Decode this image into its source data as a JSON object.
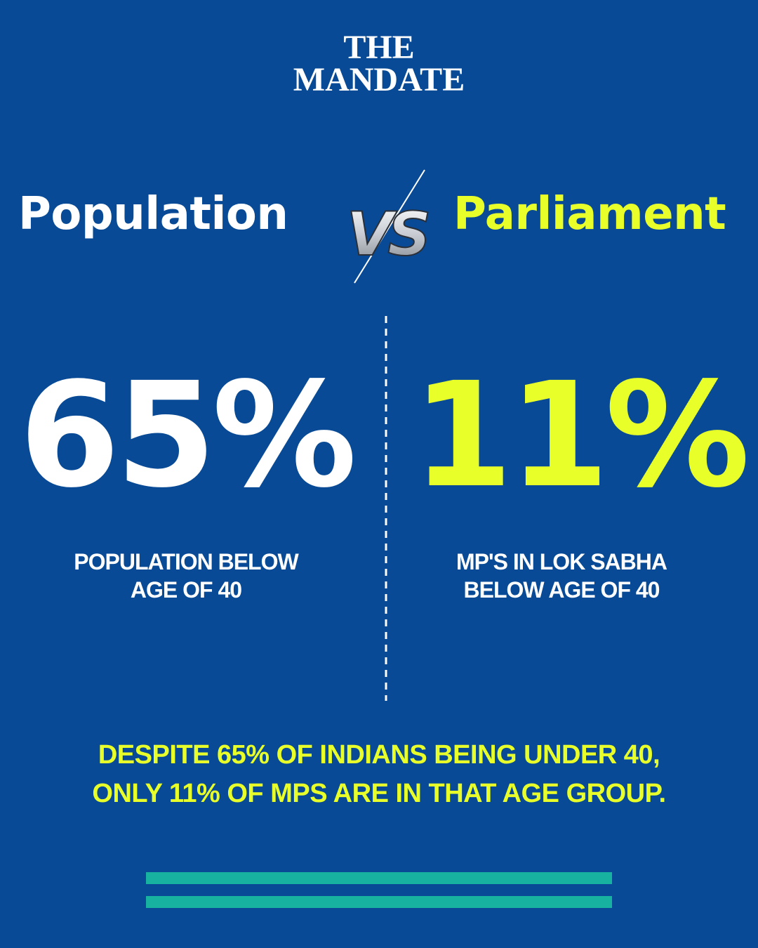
{
  "header": {
    "brand": [
      "THE",
      "MANDATE"
    ]
  },
  "comparison": {
    "left_title": "Population",
    "versus": "VS",
    "right_title": "Parliament"
  },
  "stats": [
    {
      "value": "65%",
      "caption": [
        "POPULATION BELOW",
        "AGE OF 40"
      ]
    },
    {
      "value": "11%",
      "caption": [
        "MP'S IN LOK SABHA",
        "BELOW AGE OF 40"
      ]
    }
  ],
  "footer": {
    "lines": [
      "DESPITE 65% OF INDIANS BEING UNDER 40,",
      "ONLY 11% OF MPS ARE IN THAT AGE GROUP."
    ]
  }
}
